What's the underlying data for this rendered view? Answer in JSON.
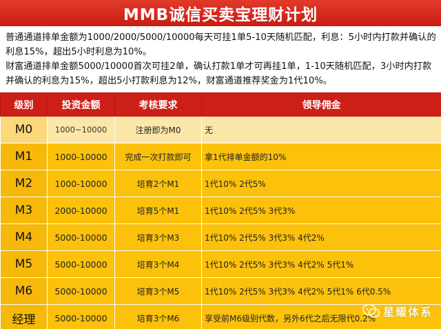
{
  "header": {
    "title": "MMB诚信买卖宝理财计划"
  },
  "intro": {
    "paragraph_1": "普通通道排单金额为1000/2000/5000/10000每天可挂1单5-10天随机匹配，利息：5小时内打款并确认的利息15%，超出5小时利息为10%。",
    "paragraph_2": "财富通道排单金额5000/10000首次可挂2单，确认打款1单才可再挂1单，1-10天随机匹配，3小时内打款并确认的利息为15%，超出5小打款利息为12%，财富通道推荐奖金为1代10%。"
  },
  "table": {
    "headers": [
      "级别",
      "投资金额",
      "考核要求",
      "领导佣金"
    ],
    "rows": [
      {
        "level": "M0",
        "amount": "1000~10000",
        "requirement": "注册即为M0",
        "commission": "无"
      },
      {
        "level": "M1",
        "amount": "1000-10000",
        "requirement": "完成一次打款即可",
        "commission": "拿1代排单金额的10%"
      },
      {
        "level": "M2",
        "amount": "1000-10000",
        "requirement": "培育2个M1",
        "commission": "1代10% 2代5%"
      },
      {
        "level": "M3",
        "amount": "2000-10000",
        "requirement": "培育5个M1",
        "commission": "1代10% 2代5%  3代3%"
      },
      {
        "level": "M4",
        "amount": "5000-10000",
        "requirement": "培育3个M3",
        "commission": "1代10% 2代5% 3代3% 4代2%"
      },
      {
        "level": "M5",
        "amount": "5000-10000",
        "requirement": "培育3个M4",
        "commission": "1代10% 2代5% 3代3% 4代2% 5代1%"
      },
      {
        "level": "M6",
        "amount": "5000-10000",
        "requirement": "培育3个M5",
        "commission": "1代10% 2代5% 3代3% 4代2% 5代1% 6代0.5%"
      },
      {
        "level": "经理",
        "amount": "5000-10000",
        "requirement": "培育3个M6",
        "commission": "享受前M6级别代数，另外6代之后无限代0.2%"
      }
    ]
  },
  "watermark": {
    "text": "星耀体系",
    "icon": "wechat-icon"
  },
  "colors": {
    "banner_red": "#cc1f17",
    "header_red": "#cc1f17",
    "cell_yellow": "#fbc10b",
    "first_row_yellow": "#fde7a8"
  }
}
